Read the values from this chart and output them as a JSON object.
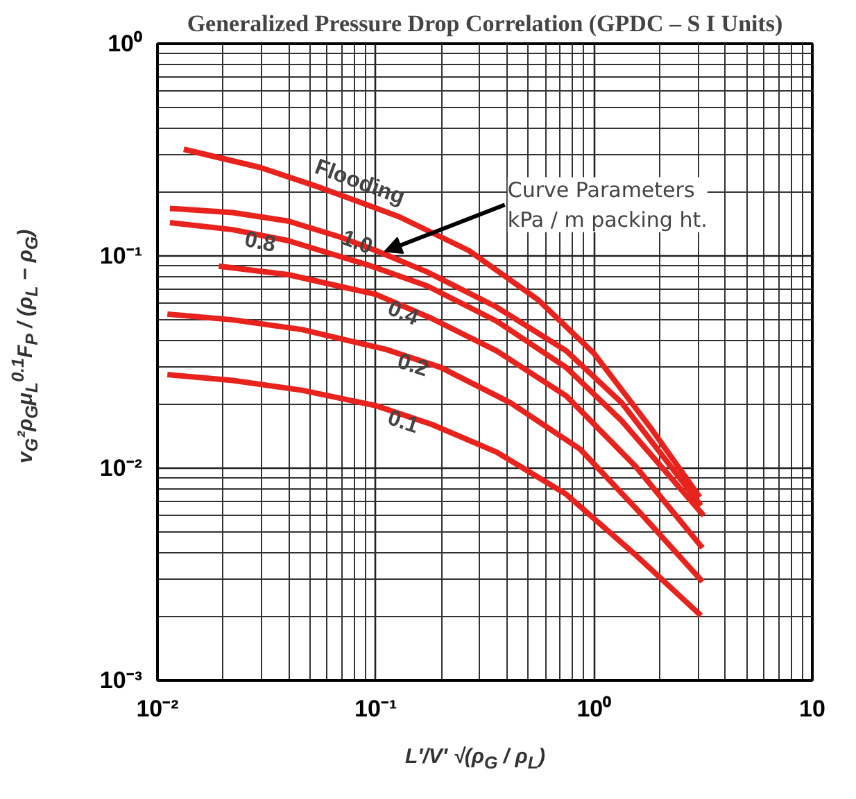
{
  "chart_data": {
    "type": "line",
    "title": "Generalized Pressure Drop Correlation (GPDC – S I Units)",
    "xlabel": "L′/V′ √(ρ$_{G}$ / ρ$_{L}$)",
    "ylabel": "v$_{G}$²ρ$_{G}$μ$_{L}$$^{0.1}$F$_{P}$ / (ρ$_{L}$ − ρ$_{G}$)",
    "log": "xy",
    "grid": true,
    "xlim": [
      0.01,
      10
    ],
    "ylim": [
      0.001,
      1
    ],
    "xticks": [
      {
        "value": 0.01,
        "label": "10⁻²"
      },
      {
        "value": 0.1,
        "label": "10⁻¹"
      },
      {
        "value": 1,
        "label": "10⁰"
      },
      {
        "value": 10,
        "label": "10"
      }
    ],
    "yticks": [
      {
        "value": 0.001,
        "label": "10⁻³"
      },
      {
        "value": 0.01,
        "label": "10⁻²"
      },
      {
        "value": 0.1,
        "label": "10⁻¹"
      },
      {
        "value": 1,
        "label": "10⁰"
      }
    ],
    "annotations": [
      {
        "text": "Curve Parameters\nkPa / m packing ht.",
        "x": 0.11,
        "y": 0.105
      }
    ],
    "series": [
      {
        "name": "Flooding",
        "color": "#e8221c",
        "x": [
          0.0132,
          0.0296,
          0.0556,
          0.128,
          0.267,
          0.556,
          1.0,
          1.8,
          3.05
        ],
        "values": [
          0.318,
          0.261,
          0.21,
          0.153,
          0.106,
          0.062,
          0.0347,
          0.0157,
          0.0073
        ]
      },
      {
        "name": "1.0",
        "color": "#e8221c",
        "x": [
          0.0114,
          0.0221,
          0.0397,
          0.0683,
          0.1,
          0.172,
          0.358,
          0.746,
          1.34,
          3.09
        ],
        "values": [
          0.1675,
          0.16,
          0.146,
          0.123,
          0.106,
          0.084,
          0.0574,
          0.0357,
          0.0203,
          0.00666
        ]
      },
      {
        "name": "0.8",
        "color": "#e8221c",
        "x": [
          0.0114,
          0.0221,
          0.0397,
          0.0916,
          0.172,
          0.358,
          0.746,
          1.34,
          3.18
        ],
        "values": [
          0.1436,
          0.133,
          0.118,
          0.0908,
          0.0722,
          0.0493,
          0.0298,
          0.0167,
          0.00598
        ]
      },
      {
        "name": "0.4",
        "color": "#e8221c",
        "x": [
          0.0191,
          0.0397,
          0.1,
          0.18,
          0.358,
          0.746,
          1.55,
          3.14
        ],
        "values": [
          0.0895,
          0.0816,
          0.0659,
          0.0508,
          0.0357,
          0.0219,
          0.0102,
          0.00421
        ]
      },
      {
        "name": "0.2",
        "color": "#e8221c",
        "x": [
          0.0111,
          0.0221,
          0.0459,
          0.111,
          0.199,
          0.415,
          0.863,
          1.67,
          3.14
        ],
        "values": [
          0.0532,
          0.05,
          0.045,
          0.0363,
          0.0298,
          0.0203,
          0.0123,
          0.00598,
          0.00292
        ]
      },
      {
        "name": "0.1",
        "color": "#e8221c",
        "x": [
          0.0111,
          0.0221,
          0.0459,
          0.1,
          0.18,
          0.358,
          0.746,
          1.55,
          3.09
        ],
        "values": [
          0.0276,
          0.0259,
          0.0233,
          0.0197,
          0.0161,
          0.0119,
          0.00753,
          0.0039,
          0.00202
        ]
      }
    ]
  }
}
